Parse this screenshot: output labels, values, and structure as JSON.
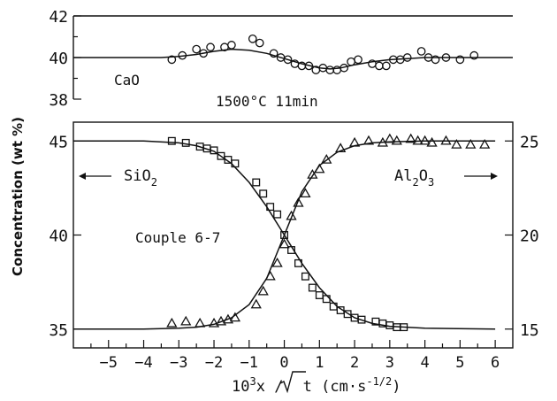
{
  "chart_data": [
    {
      "panel": "top",
      "type": "scatter",
      "label": "CaO",
      "condition": "1500°C 11min",
      "xlim": [
        -6,
        6.5
      ],
      "ylim": [
        38,
        42
      ],
      "yticks": [
        38,
        40,
        42
      ],
      "grid": false,
      "series": [
        {
          "name": "CaO",
          "marker": "circle",
          "x": [
            -3.2,
            -2.9,
            -2.5,
            -2.3,
            -2.1,
            -1.7,
            -1.5,
            -0.9,
            -0.7,
            -0.3,
            -0.1,
            0.1,
            0.3,
            0.5,
            0.7,
            0.9,
            1.1,
            1.3,
            1.5,
            1.7,
            1.9,
            2.1,
            2.5,
            2.7,
            2.9,
            3.1,
            3.3,
            3.5,
            3.9,
            4.1,
            4.3,
            4.6,
            5.0,
            5.4
          ],
          "y": [
            39.9,
            40.1,
            40.4,
            40.2,
            40.5,
            40.5,
            40.6,
            40.9,
            40.7,
            40.2,
            40.0,
            39.9,
            39.7,
            39.6,
            39.6,
            39.4,
            39.5,
            39.4,
            39.4,
            39.5,
            39.8,
            39.9,
            39.7,
            39.6,
            39.6,
            39.9,
            39.9,
            40.0,
            40.3,
            40.0,
            39.9,
            40.0,
            39.9,
            40.1
          ]
        },
        {
          "name": "CaO fit",
          "marker": "line",
          "x": [
            -6,
            -5,
            -4,
            -3.5,
            -3,
            -2.5,
            -2,
            -1.5,
            -1,
            -0.5,
            0,
            0.5,
            1,
            1.3,
            1.6,
            2,
            2.5,
            3,
            3.5,
            4,
            5,
            6.5
          ],
          "y": [
            40.0,
            40.0,
            40.0,
            40.0,
            40.05,
            40.15,
            40.3,
            40.4,
            40.35,
            40.2,
            39.95,
            39.7,
            39.5,
            39.45,
            39.5,
            39.65,
            39.8,
            39.9,
            39.95,
            40.0,
            40.0,
            40.0
          ]
        }
      ]
    },
    {
      "panel": "bottom",
      "type": "scatter",
      "label": "Couple 6-7",
      "xlabel_parts": [
        "10",
        "3",
        "x / ",
        "t",
        " (cm·s",
        "-1/2",
        ")"
      ],
      "ylabel": "Concentration (wt %)",
      "xlim": [
        -6,
        6.5
      ],
      "ylim": [
        34,
        46
      ],
      "y2lim": [
        14,
        26
      ],
      "xticks": [
        -5,
        -4,
        -3,
        -2,
        -1,
        0,
        1,
        2,
        3,
        4,
        5,
        6
      ],
      "yticks": [
        35,
        40,
        45
      ],
      "y2ticks": [
        15,
        20,
        25
      ],
      "grid": false,
      "left_series_label": [
        "SiO",
        "2"
      ],
      "right_series_label": [
        "Al",
        "2",
        "O",
        "3"
      ],
      "series": [
        {
          "name": "SiO2",
          "axis": "left",
          "marker": "square",
          "x": [
            -3.2,
            -2.8,
            -2.4,
            -2.2,
            -2.0,
            -1.8,
            -1.6,
            -1.4,
            -0.8,
            -0.6,
            -0.4,
            -0.2,
            0.0,
            0.2,
            0.4,
            0.6,
            0.8,
            1.0,
            1.2,
            1.4,
            1.6,
            1.8,
            2.0,
            2.2,
            2.6,
            2.8,
            3.0,
            3.2,
            3.4
          ],
          "y": [
            45.0,
            44.9,
            44.7,
            44.6,
            44.5,
            44.2,
            44.0,
            43.8,
            42.8,
            42.2,
            41.5,
            41.1,
            40.0,
            39.2,
            38.5,
            37.8,
            37.2,
            36.8,
            36.6,
            36.2,
            36.0,
            35.8,
            35.6,
            35.5,
            35.4,
            35.3,
            35.2,
            35.1,
            35.1
          ]
        },
        {
          "name": "Al2O3",
          "axis": "right",
          "marker": "triangle",
          "x": [
            -3.2,
            -2.8,
            -2.4,
            -2.0,
            -1.8,
            -1.6,
            -1.4,
            -0.8,
            -0.6,
            -0.4,
            -0.2,
            0.0,
            0.2,
            0.4,
            0.6,
            0.8,
            1.0,
            1.2,
            1.6,
            2.0,
            2.4,
            2.8,
            3.0,
            3.2,
            3.6,
            3.8,
            4.0,
            4.2,
            4.6,
            4.9,
            5.3,
            5.7
          ],
          "y": [
            15.3,
            15.4,
            15.3,
            15.3,
            15.4,
            15.5,
            15.6,
            16.3,
            17.0,
            17.8,
            18.5,
            19.5,
            21.0,
            21.7,
            22.2,
            23.2,
            23.5,
            24.0,
            24.6,
            24.9,
            25.0,
            24.9,
            25.1,
            25.0,
            25.1,
            25.0,
            25.0,
            24.9,
            25.0,
            24.8,
            24.8,
            24.8
          ]
        },
        {
          "name": "SiO2 fit",
          "axis": "left",
          "marker": "line",
          "x": [
            -6,
            -4,
            -3,
            -2.5,
            -2,
            -1.5,
            -1,
            -0.5,
            0,
            0.5,
            1,
            1.5,
            2,
            2.5,
            3,
            4,
            6
          ],
          "y": [
            45.0,
            45.0,
            44.9,
            44.75,
            44.45,
            43.8,
            42.8,
            41.5,
            40.0,
            38.5,
            37.2,
            36.2,
            35.6,
            35.3,
            35.15,
            35.05,
            35.0
          ]
        },
        {
          "name": "Al2O3 fit",
          "axis": "right",
          "marker": "line",
          "x": [
            -6,
            -4,
            -3,
            -2.5,
            -2,
            -1.5,
            -1,
            -0.5,
            0,
            0.5,
            1,
            1.5,
            2,
            2.5,
            3,
            4,
            6
          ],
          "y": [
            15.0,
            15.0,
            15.05,
            15.1,
            15.25,
            15.6,
            16.3,
            17.7,
            20.0,
            22.3,
            23.7,
            24.4,
            24.75,
            24.9,
            24.95,
            25.0,
            25.0
          ]
        }
      ]
    }
  ]
}
